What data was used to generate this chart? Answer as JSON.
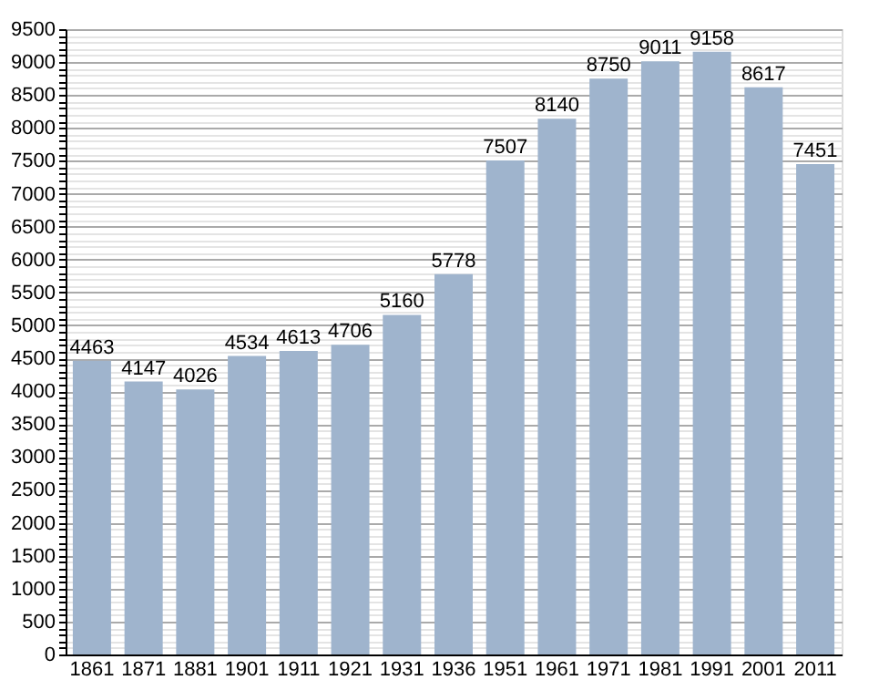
{
  "chart_data": {
    "type": "bar",
    "categories": [
      "1861",
      "1871",
      "1881",
      "1901",
      "1911",
      "1921",
      "1931",
      "1936",
      "1951",
      "1961",
      "1971",
      "1981",
      "1991",
      "2001",
      "2011"
    ],
    "values": [
      4463,
      4147,
      4026,
      4534,
      4613,
      4706,
      5160,
      5778,
      7507,
      8140,
      8750,
      9011,
      9158,
      8617,
      7451
    ],
    "color": "#9fb4cd",
    "data_labels": true,
    "grid": "y",
    "ylim": [
      0,
      9500
    ],
    "yticks": [
      0,
      {
        "value": 100,
        "label": null
      },
      {
        "value": 200,
        "label": null
      },
      {
        "value": 300,
        "label": null
      },
      {
        "value": 400,
        "label": null
      },
      500,
      {
        "value": 600,
        "label": null
      },
      {
        "value": 700,
        "label": null
      },
      {
        "value": 800,
        "label": null
      },
      {
        "value": 900,
        "label": null
      },
      1000,
      {
        "value": 1100,
        "label": null
      },
      {
        "value": 1200,
        "label": null
      },
      {
        "value": 1300,
        "label": null
      },
      {
        "value": 1400,
        "label": null
      },
      1500,
      {
        "value": 1600,
        "label": null
      },
      {
        "value": 1700,
        "label": null
      },
      {
        "value": 1800,
        "label": null
      },
      {
        "value": 1900,
        "label": null
      },
      2000,
      {
        "value": 2100,
        "label": null
      },
      {
        "value": 2200,
        "label": null
      },
      {
        "value": 2300,
        "label": null
      },
      {
        "value": 2400,
        "label": null
      },
      2500,
      {
        "value": 2600,
        "label": null
      },
      {
        "value": 2700,
        "label": null
      },
      {
        "value": 2800,
        "label": null
      },
      {
        "value": 2900,
        "label": null
      },
      3000,
      {
        "value": 3100,
        "label": null
      },
      {
        "value": 3200,
        "label": null
      },
      {
        "value": 3300,
        "label": null
      },
      {
        "value": 3400,
        "label": null
      },
      3500,
      {
        "value": 3600,
        "label": null
      },
      {
        "value": 3700,
        "label": null
      },
      {
        "value": 3800,
        "label": null
      },
      {
        "value": 3900,
        "label": null
      },
      4000,
      {
        "value": 4100,
        "label": null
      },
      {
        "value": 4200,
        "label": null
      },
      {
        "value": 4300,
        "label": null
      },
      {
        "value": 4400,
        "label": null
      },
      4500,
      {
        "value": 4600,
        "label": null
      },
      {
        "value": 4700,
        "label": null
      },
      {
        "value": 4800,
        "label": null
      },
      {
        "value": 4900,
        "label": null
      },
      5000,
      {
        "value": 5100,
        "label": null
      },
      {
        "value": 5200,
        "label": null
      },
      {
        "value": 5300,
        "label": null
      },
      {
        "value": 5400,
        "label": null
      },
      5500,
      {
        "value": 5600,
        "label": null
      },
      {
        "value": 5700,
        "label": null
      },
      {
        "value": 5800,
        "label": null
      },
      {
        "value": 5900,
        "label": null
      },
      6000,
      {
        "value": 6100,
        "label": null
      },
      {
        "value": 6200,
        "label": null
      },
      {
        "value": 6300,
        "label": null
      },
      {
        "value": 6400,
        "label": null
      },
      6500,
      {
        "value": 6600,
        "label": null
      },
      {
        "value": 6700,
        "label": null
      },
      {
        "value": 6800,
        "label": null
      },
      {
        "value": 6900,
        "label": null
      },
      7000,
      {
        "value": 7100,
        "label": null
      },
      {
        "value": 7200,
        "label": null
      },
      {
        "value": 7300,
        "label": null
      },
      {
        "value": 7400,
        "label": null
      },
      7500,
      {
        "value": 7600,
        "label": null
      },
      {
        "value": 7700,
        "label": null
      },
      {
        "value": 7800,
        "label": null
      },
      {
        "value": 7900,
        "label": null
      },
      8000,
      {
        "value": 8100,
        "label": null
      },
      {
        "value": 8200,
        "label": null
      },
      {
        "value": 8300,
        "label": null
      },
      {
        "value": 8400,
        "label": null
      },
      8500,
      {
        "value": 8600,
        "label": null
      },
      {
        "value": 8700,
        "label": null
      },
      {
        "value": 8800,
        "label": null
      },
      {
        "value": 8900,
        "label": null
      },
      9000,
      {
        "value": 9100,
        "label": null
      },
      {
        "value": 9200,
        "label": null
      },
      {
        "value": 9300,
        "label": null
      },
      {
        "value": 9400,
        "label": null
      },
      9500
    ]
  }
}
